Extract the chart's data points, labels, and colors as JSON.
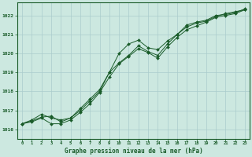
{
  "title": "Graphe pression niveau de la mer (hPa)",
  "bg_color": "#cce8e0",
  "grid_color": "#aacccc",
  "line_color": "#1a5c2a",
  "xlim": [
    -0.5,
    23.5
  ],
  "ylim": [
    1015.5,
    1022.7
  ],
  "yticks": [
    1016,
    1017,
    1018,
    1019,
    1020,
    1021,
    1022
  ],
  "xticks": [
    0,
    1,
    2,
    3,
    4,
    5,
    6,
    7,
    8,
    9,
    10,
    11,
    12,
    13,
    14,
    15,
    16,
    17,
    18,
    19,
    20,
    21,
    22,
    23
  ],
  "series1_x": [
    0,
    1,
    2,
    3,
    4,
    5,
    6,
    7,
    8,
    9,
    10,
    11,
    12,
    13,
    14,
    15,
    16,
    17,
    18,
    19,
    20,
    21,
    22,
    23
  ],
  "series1_y": [
    1016.3,
    1016.45,
    1016.65,
    1016.7,
    1016.4,
    1016.6,
    1017.1,
    1017.6,
    1018.1,
    1019.0,
    1020.0,
    1020.5,
    1020.7,
    1020.3,
    1020.2,
    1020.65,
    1021.0,
    1021.5,
    1021.65,
    1021.75,
    1022.0,
    1022.05,
    1022.15,
    1022.35
  ],
  "series2_x": [
    0,
    1,
    2,
    3,
    4,
    5,
    6,
    7,
    8,
    9,
    10,
    11,
    12,
    13,
    14,
    15,
    16,
    17,
    18,
    19,
    20,
    21,
    22,
    23
  ],
  "series2_y": [
    1016.3,
    1016.4,
    1016.6,
    1016.3,
    1016.3,
    1016.5,
    1016.9,
    1017.35,
    1017.95,
    1018.75,
    1019.45,
    1019.85,
    1020.25,
    1020.05,
    1019.75,
    1020.35,
    1020.85,
    1021.25,
    1021.45,
    1021.65,
    1021.9,
    1022.0,
    1022.1,
    1022.3
  ],
  "series3_x": [
    0,
    1,
    2,
    3,
    4,
    5,
    6,
    7,
    8,
    9,
    10,
    11,
    12,
    13,
    14,
    15,
    16,
    17,
    18,
    19,
    20,
    21,
    22,
    23
  ],
  "series3_y": [
    1016.3,
    1016.5,
    1016.8,
    1016.6,
    1016.5,
    1016.6,
    1017.0,
    1017.5,
    1018.0,
    1019.0,
    1019.5,
    1019.9,
    1020.4,
    1020.1,
    1019.9,
    1020.5,
    1021.0,
    1021.4,
    1021.6,
    1021.7,
    1021.95,
    1022.1,
    1022.2,
    1022.3
  ]
}
